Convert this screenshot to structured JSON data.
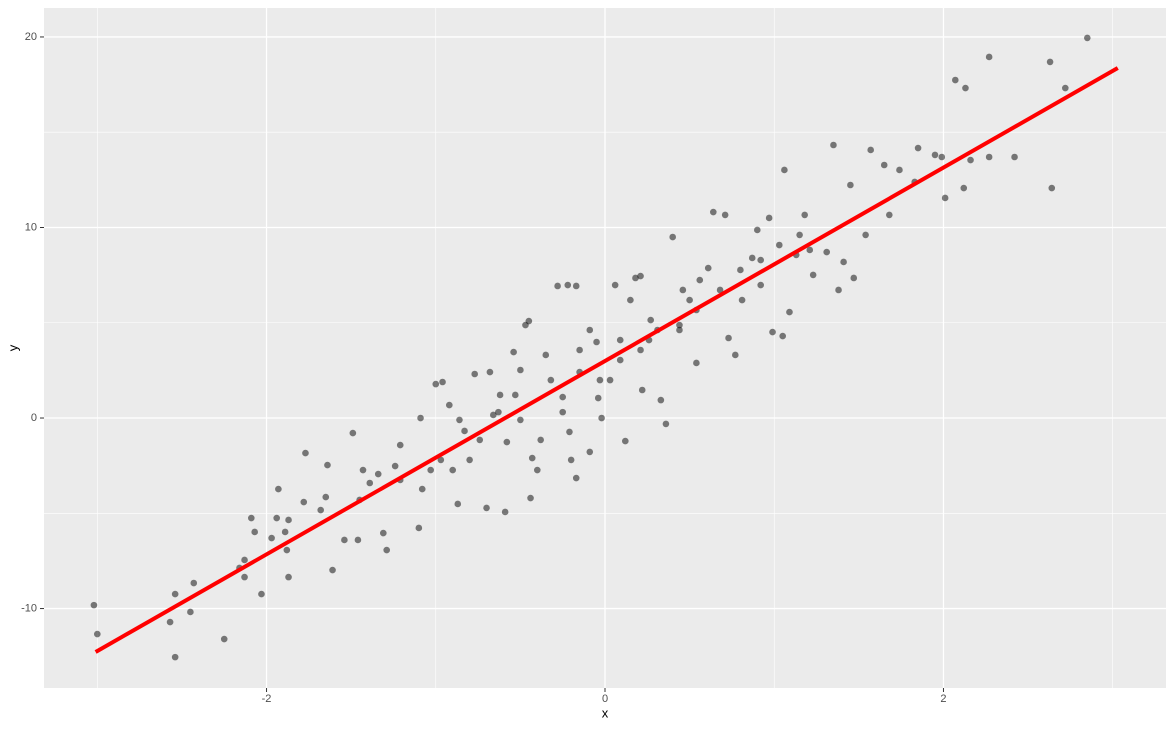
{
  "chart_data": {
    "type": "scatter",
    "xlabel": "x",
    "ylabel": "y",
    "xlim": [
      -3.315,
      3.315
    ],
    "ylim": [
      -14.17,
      21.52
    ],
    "xticks": [
      -2,
      0,
      2
    ],
    "yticks": [
      -10,
      0,
      10,
      20
    ],
    "grid": true,
    "minor_grid": true,
    "series": [
      {
        "type": "scatter",
        "color": "#000000",
        "x": [
          -3.02,
          -3.0,
          -2.54,
          -2.57,
          -2.54,
          -2.43,
          -2.45,
          -2.25,
          -2.16,
          -2.13,
          -2.13,
          -2.09,
          -2.07,
          -2.03,
          -1.97,
          -1.93,
          -1.94,
          -1.89,
          -1.87,
          -1.87,
          -1.88,
          -1.77,
          -1.78,
          -1.64,
          -1.61,
          -1.65,
          -1.49,
          -1.54,
          -1.46,
          -1.43,
          -1.39,
          -1.34,
          -1.31,
          -1.29,
          -1.24,
          -1.21,
          -1.1,
          -1.09,
          -1.08,
          -1.0,
          -0.96,
          -0.97,
          -0.92,
          -0.9,
          -0.87,
          -0.83,
          -0.77,
          -0.7,
          -0.68,
          -0.66,
          -0.63,
          -0.59,
          -0.58,
          -0.54,
          -0.53,
          -0.5,
          -0.47,
          -0.45,
          -0.43,
          -0.44,
          -0.4,
          -0.35,
          -0.28,
          -0.22,
          -0.25,
          -0.25,
          -0.21,
          -0.2,
          -0.17,
          -0.17,
          -0.15,
          -0.09,
          -0.09,
          -0.05,
          -0.04,
          -0.02,
          0.03,
          0.06,
          0.09,
          0.12,
          0.15,
          0.18,
          0.21,
          0.22,
          0.26,
          0.31,
          0.33,
          0.36,
          0.4,
          0.44,
          0.46,
          0.54,
          0.54,
          0.61,
          0.64,
          0.71,
          0.73,
          0.77,
          0.81,
          0.87,
          0.9,
          0.92,
          0.97,
          0.99,
          1.05,
          1.06,
          1.09,
          1.13,
          1.18,
          1.23,
          1.31,
          1.35,
          1.38,
          1.41,
          1.45,
          1.47,
          1.54,
          1.57,
          1.65,
          1.68,
          1.74,
          1.83,
          1.85,
          1.95,
          2.01,
          1.99,
          2.07,
          2.13,
          2.12,
          2.16,
          2.27,
          2.27,
          2.42,
          2.63,
          2.64,
          2.72,
          2.85,
          -0.74,
          -0.86,
          -0.62,
          -0.32,
          -0.15,
          0.09,
          0.27,
          0.5,
          0.68,
          0.92,
          -0.5,
          -0.38,
          -0.8,
          -1.03,
          -1.21,
          -1.45,
          -1.68,
          -0.03,
          0.21,
          0.44,
          0.56,
          0.8,
          1.03,
          1.15,
          1.21
        ],
        "y": [
          -9.82,
          -11.34,
          -9.24,
          -10.71,
          -12.55,
          -8.66,
          -10.18,
          -11.6,
          -7.87,
          -7.45,
          -8.35,
          -5.25,
          -5.98,
          -9.24,
          -6.3,
          -3.73,
          -5.25,
          -5.98,
          -5.35,
          -8.35,
          -6.93,
          -1.84,
          -4.41,
          -2.47,
          -7.98,
          -4.15,
          -0.79,
          -6.4,
          -6.4,
          -2.73,
          -3.41,
          -2.94,
          -6.04,
          -6.93,
          -2.52,
          -1.42,
          -5.77,
          0,
          -3.73,
          1.78,
          1.89,
          -2.2,
          0.68,
          -2.73,
          -4.51,
          -0.68,
          2.31,
          -4.72,
          2.41,
          0.16,
          0.31,
          -4.93,
          -1.26,
          3.46,
          1.21,
          2.52,
          4.88,
          5.09,
          -2.1,
          -4.2,
          -2.73,
          3.31,
          6.93,
          6.98,
          1.1,
          0.31,
          -0.73,
          -2.2,
          -3.15,
          6.93,
          2.41,
          4.62,
          -1.78,
          3.99,
          1.05,
          0,
          1.99,
          6.98,
          4.09,
          -1.21,
          6.19,
          7.35,
          7.45,
          1.47,
          4.09,
          4.62,
          0.94,
          -0.31,
          9.5,
          4.88,
          6.72,
          5.67,
          2.89,
          7.87,
          10.81,
          10.66,
          4.2,
          3.31,
          6.19,
          8.4,
          9.87,
          6.98,
          10.5,
          4.51,
          4.3,
          13.02,
          5.56,
          8.56,
          10.66,
          7.51,
          8.71,
          14.33,
          6.72,
          8.19,
          12.23,
          7.35,
          9.61,
          14.07,
          13.28,
          10.66,
          13.02,
          12.39,
          14.17,
          13.81,
          11.55,
          13.7,
          17.74,
          17.32,
          12.07,
          13.54,
          18.95,
          13.7,
          13.7,
          18.69,
          12.07,
          17.32,
          19.95,
          -1.15,
          -0.1,
          1.21,
          1.99,
          3.57,
          3.04,
          5.14,
          6.19,
          6.72,
          8.29,
          -0.1,
          -1.15,
          -2.2,
          -2.73,
          -3.25,
          -4.3,
          -4.83,
          1.99,
          3.57,
          4.62,
          7.24,
          7.77,
          9.08,
          9.61,
          8.82
        ]
      },
      {
        "type": "line",
        "color": "#ff0000",
        "x": [
          -3.01,
          3.03
        ],
        "y": [
          -12.28,
          18.37
        ]
      }
    ]
  }
}
